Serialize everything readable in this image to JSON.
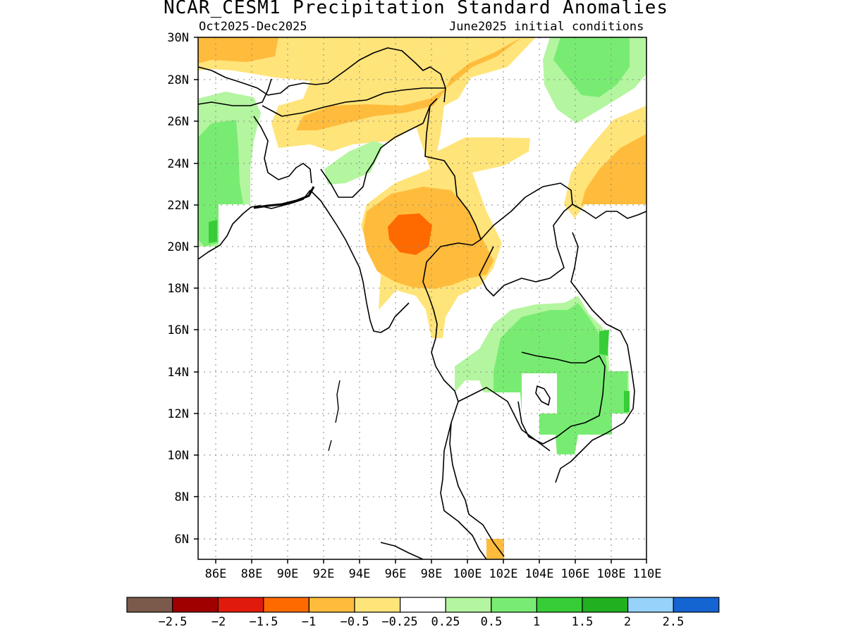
{
  "title": "NCAR_CESM1 Precipitation Standard Anomalies",
  "subtitle_left": "Oct2025-Dec2025",
  "subtitle_right": "June2025 initial conditions",
  "map": {
    "lat_range": [
      5,
      30
    ],
    "lon_range": [
      85,
      110
    ],
    "lat_ticks": [
      "30N",
      "28N",
      "26N",
      "24N",
      "22N",
      "20N",
      "18N",
      "16N",
      "14N",
      "12N",
      "10N",
      "8N",
      "6N"
    ],
    "lon_ticks": [
      "86E",
      "88E",
      "90E",
      "92E",
      "94E",
      "96E",
      "98E",
      "100E",
      "102E",
      "104E",
      "106E",
      "108E",
      "110E"
    ],
    "grid": "dotted"
  },
  "colorbar": {
    "colors": [
      "#7b5a4c",
      "#a00000",
      "#e01b0b",
      "#ff6a00",
      "#ffbc3c",
      "#ffe47a",
      "#ffffff",
      "#b4f5a0",
      "#78ec72",
      "#37cd37",
      "#20b020",
      "#96d2fa",
      "#1464d2"
    ],
    "labels": [
      "−2.5",
      "−2",
      "−1.5",
      "−1",
      "−0.5",
      "−0.25",
      "0.25",
      "0.5",
      "1",
      "1.5",
      "2",
      "2.5"
    ]
  }
}
